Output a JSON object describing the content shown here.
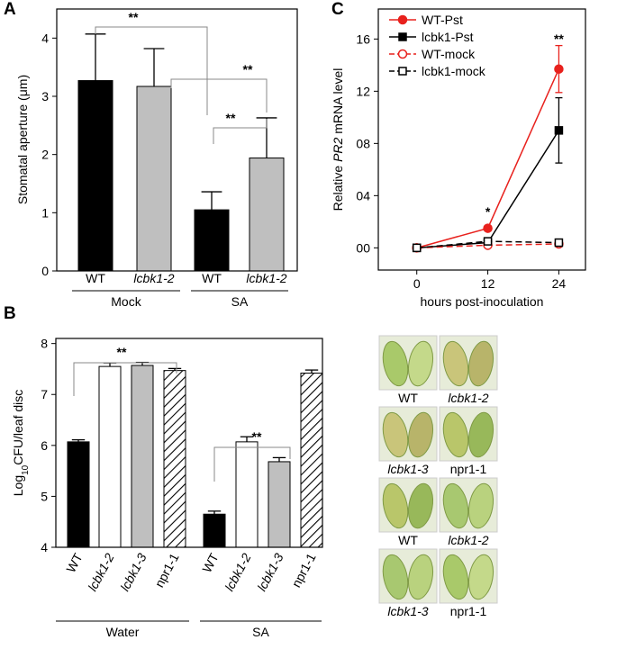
{
  "chart_data": [
    {
      "type": "bar",
      "panel": "A",
      "ylabel": [
        "Stomatal aperture (μm)"
      ],
      "categories": [
        "WT",
        "lcbk1-2",
        "WT",
        "lcbk1-2"
      ],
      "groups": [
        "Mock",
        "SA"
      ],
      "values": [
        3.27,
        3.17,
        1.05,
        1.94
      ],
      "errors": [
        0.8,
        0.65,
        0.31,
        0.69
      ],
      "colors": [
        "#000000",
        "#bfbfbf",
        "#000000",
        "#bfbfbf"
      ],
      "hatched": [
        false,
        false,
        false,
        false
      ],
      "ylim": [
        0,
        4.5
      ],
      "yticks": [
        0,
        1,
        2,
        3,
        4
      ],
      "annotations": [
        "**",
        "**",
        "**"
      ]
    },
    {
      "type": "bar",
      "panel": "B",
      "ylabel": [
        "Log",
        "10",
        "CFU/leaf disc"
      ],
      "categories": [
        "WT",
        "lcbk1-2",
        "lcbk1-3",
        "npr1-1",
        "WT",
        "lcbk1-2",
        "lcbk1-3",
        "npr1-1"
      ],
      "groups": [
        "Water",
        "SA"
      ],
      "values": [
        6.07,
        7.55,
        7.57,
        7.47,
        4.65,
        6.07,
        5.68,
        7.42
      ],
      "errors": [
        0.04,
        0.07,
        0.06,
        0.04,
        0.06,
        0.1,
        0.08,
        0.06
      ],
      "colors": [
        "#000000",
        "#ffffff",
        "#bfbfbf",
        "#ffffff",
        "#000000",
        "#ffffff",
        "#bfbfbf",
        "#ffffff"
      ],
      "hatched": [
        false,
        false,
        false,
        true,
        false,
        false,
        false,
        true
      ],
      "ylim": [
        4,
        8.1
      ],
      "yticks": [
        4,
        5,
        6,
        7,
        8
      ],
      "annotations": [
        "**",
        "**"
      ]
    },
    {
      "type": "line",
      "panel": "C",
      "ylabel": [
        "Relative ",
        "PR2",
        " mRNA level"
      ],
      "xlabel": "hours post-inoculation",
      "x": [
        0,
        12,
        24
      ],
      "xlim": [
        -6.5,
        28.5
      ],
      "xticks": [
        0,
        12,
        24
      ],
      "ylim": [
        -0.17,
        1.83
      ],
      "yticks": [
        {
          "value": 0,
          "label": "00"
        },
        {
          "value": 0.4,
          "label": "04"
        },
        {
          "value": 0.8,
          "label": "08"
        },
        {
          "value": 1.2,
          "label": "12"
        },
        {
          "value": 1.6,
          "label": "16"
        }
      ],
      "series": [
        {
          "name": "WT-Pst",
          "color": "#e8211d",
          "dashed": false,
          "marker": "circle",
          "filled": true,
          "values": [
            0.0,
            0.15,
            1.37
          ],
          "errors": [
            0.01,
            0.02,
            0.18
          ]
        },
        {
          "name": "lcbk1-Pst",
          "color": "#000000",
          "dashed": false,
          "marker": "square",
          "filled": true,
          "values": [
            0.0,
            0.04,
            0.9
          ],
          "errors": [
            0.01,
            0.01,
            0.25
          ]
        },
        {
          "name": "WT-mock",
          "color": "#e8211d",
          "dashed": true,
          "marker": "circle",
          "filled": false,
          "values": [
            0.0,
            0.02,
            0.03
          ],
          "errors": [
            0.0,
            0.0,
            0.0
          ]
        },
        {
          "name": "lcbk1-mock",
          "color": "#000000",
          "dashed": true,
          "marker": "square",
          "filled": false,
          "values": [
            0.0,
            0.05,
            0.04
          ],
          "errors": [
            0.0,
            0.0,
            0.0
          ]
        }
      ],
      "annotations": [
        "*",
        "**"
      ]
    }
  ],
  "photos": {
    "labels": [
      "WT",
      "lcbk1-2",
      "lcbk1-3",
      "npr1-1",
      "WT",
      "lcbk1-2",
      "lcbk1-3",
      "npr1-1"
    ]
  }
}
